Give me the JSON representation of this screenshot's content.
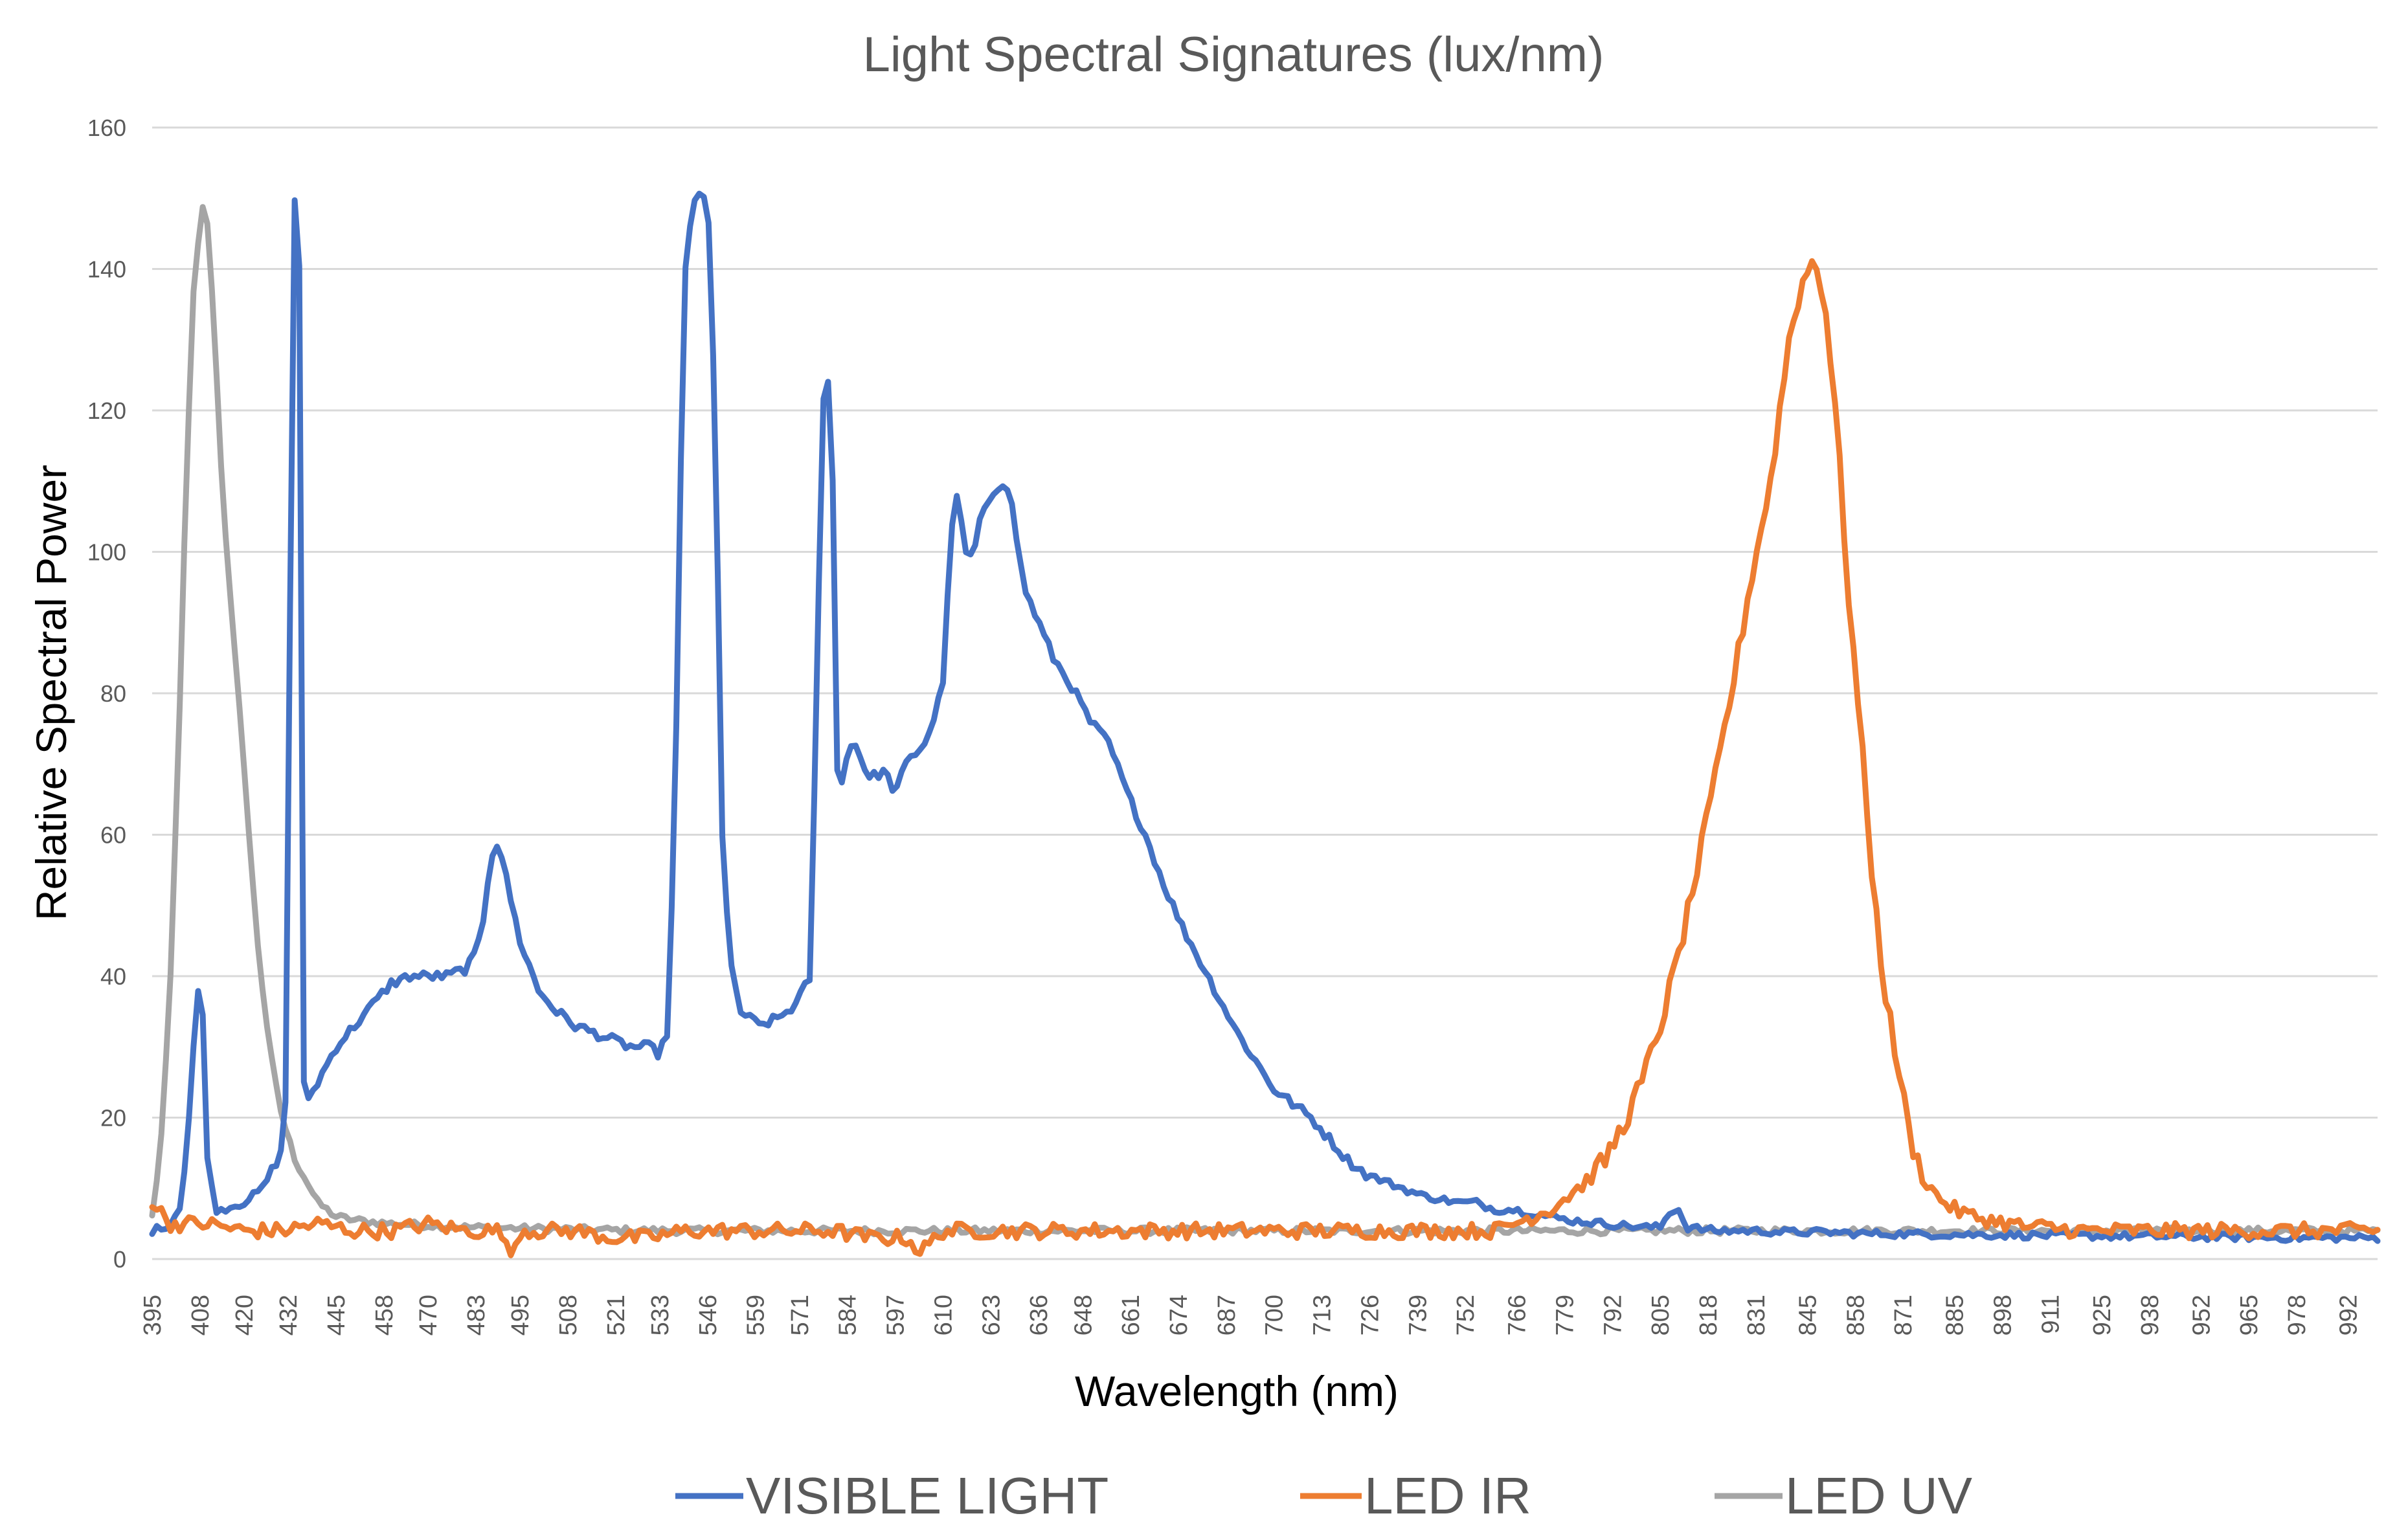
{
  "colors": {
    "visible": "#4472c4",
    "ir": "#ed7d31",
    "uv": "#a5a5a5"
  },
  "chart_data": {
    "type": "line",
    "title": "Light Spectral Signatures (lux/nm)",
    "xlabel": "Wavelength (nm)",
    "ylabel": "Relative Spectral Power",
    "xlim": [
      395,
      1000
    ],
    "ylim": [
      0,
      160
    ],
    "ytick_step": 20,
    "yticks": [
      "0",
      "20",
      "40",
      "60",
      "80",
      "100",
      "120",
      "140",
      "160"
    ],
    "xticks": [
      "395",
      "408",
      "420",
      "432",
      "445",
      "458",
      "470",
      "483",
      "495",
      "508",
      "521",
      "533",
      "546",
      "559",
      "571",
      "584",
      "597",
      "610",
      "623",
      "636",
      "648",
      "661",
      "674",
      "687",
      "700",
      "713",
      "726",
      "739",
      "752",
      "766",
      "779",
      "792",
      "805",
      "818",
      "831",
      "845",
      "858",
      "871",
      "885",
      "898",
      "911",
      "925",
      "938",
      "952",
      "965",
      "978",
      "992"
    ],
    "grid": true,
    "legend_position": "bottom",
    "series": [
      {
        "name": "VISIBLE LIGHT",
        "color": "#4472c4",
        "x": [
          395,
          400,
          403,
          405,
          407,
          408,
          409,
          410,
          412,
          414,
          420,
          425,
          428,
          430,
          431,
          432,
          433,
          434,
          435,
          436,
          437,
          438,
          440,
          445,
          450,
          455,
          460,
          465,
          470,
          475,
          480,
          483,
          485,
          487,
          489,
          490,
          492,
          495,
          500,
          505,
          510,
          515,
          520,
          525,
          530,
          533,
          535,
          537,
          539,
          540,
          542,
          544,
          546,
          548,
          550,
          552,
          555,
          560,
          565,
          570,
          574,
          576,
          578,
          580,
          581,
          582,
          584,
          586,
          590,
          594,
          597,
          600,
          605,
          608,
          610,
          611,
          612,
          614,
          616,
          618,
          620,
          623,
          626,
          628,
          632,
          636,
          640,
          645,
          650,
          655,
          660,
          665,
          670,
          675,
          680,
          685,
          690,
          695,
          700,
          705,
          710,
          715,
          720,
          725,
          730,
          735,
          740,
          745,
          750,
          755,
          760,
          765,
          770,
          780,
          790,
          800,
          805,
          808,
          810,
          812,
          820,
          830,
          840,
          850,
          860,
          880,
          900,
          920,
          940,
          960,
          980,
          1000
        ],
        "y": [
          4,
          5,
          8,
          20,
          36,
          39,
          33,
          15,
          7,
          7,
          8,
          10,
          13,
          15,
          18,
          35,
          150,
          150,
          140,
          25,
          23,
          23,
          25,
          30,
          33,
          36,
          39,
          40,
          40,
          40,
          41,
          43,
          48,
          57,
          59,
          57,
          52,
          45,
          38,
          35,
          33,
          32,
          31,
          30,
          30,
          29,
          32,
          60,
          120,
          140,
          150,
          150,
          150,
          120,
          60,
          42,
          35,
          33,
          34,
          36,
          40,
          90,
          133,
          110,
          70,
          66,
          72,
          73,
          68,
          69,
          66,
          70,
          73,
          77,
          82,
          90,
          103,
          108,
          100,
          99,
          104,
          108,
          110,
          109,
          95,
          90,
          85,
          81,
          76,
          73,
          66,
          60,
          53,
          47,
          42,
          37,
          32,
          28,
          24,
          22,
          20,
          17,
          14,
          12,
          11,
          10,
          9,
          8.5,
          8,
          8,
          7,
          7,
          6.5,
          5.5,
          5,
          4.5,
          4.5,
          7,
          7,
          4.5,
          4,
          4,
          3.8,
          3.8,
          3.6,
          3.5,
          3.4,
          3.3,
          3.2,
          3.1,
          3,
          3
        ]
      },
      {
        "name": "LED IR",
        "color": "#ed7d31",
        "x": [
          395,
          400,
          410,
          420,
          430,
          440,
          450,
          460,
          470,
          480,
          490,
          492,
          495,
          500,
          510,
          520,
          530,
          540,
          550,
          560,
          570,
          580,
          590,
          600,
          604,
          610,
          620,
          630,
          640,
          650,
          660,
          670,
          680,
          690,
          700,
          710,
          720,
          730,
          740,
          750,
          760,
          765,
          770,
          775,
          780,
          785,
          790,
          795,
          800,
          805,
          810,
          815,
          820,
          825,
          830,
          835,
          838,
          840,
          843,
          846,
          848,
          850,
          853,
          856,
          860,
          863,
          866,
          870,
          873,
          876,
          880,
          885,
          890,
          895,
          900,
          905,
          910,
          920,
          930,
          940,
          950,
          960,
          970,
          980,
          990,
          1000
        ],
        "y": [
          8,
          5,
          5,
          4,
          4,
          5,
          4,
          4,
          5,
          4,
          4,
          0,
          4,
          4,
          4,
          3,
          3,
          4,
          4,
          4,
          4,
          4,
          3,
          3,
          1,
          4,
          4,
          4,
          4,
          4,
          4,
          4,
          4,
          4,
          4,
          4,
          4,
          4,
          4,
          4,
          4,
          5,
          6,
          7,
          9,
          11,
          14,
          19,
          25,
          33,
          43,
          55,
          68,
          82,
          97,
          110,
          122,
          130,
          137,
          141,
          140,
          134,
          118,
          95,
          71,
          52,
          38,
          26,
          17,
          12,
          9,
          7,
          6,
          5.5,
          5,
          4.5,
          4.5,
          4,
          4,
          4,
          4,
          4,
          4,
          4,
          4,
          4
        ]
      },
      {
        "name": "LED UV",
        "color": "#a5a5a5",
        "x": [
          395,
          396,
          398,
          400,
          402,
          404,
          406,
          408,
          409,
          410,
          411,
          412,
          414,
          416,
          418,
          420,
          422,
          424,
          426,
          428,
          430,
          432,
          434,
          436,
          438,
          440,
          445,
          450,
          460,
          470,
          480,
          500,
          520,
          540,
          560,
          580,
          600,
          620,
          640,
          660,
          680,
          700,
          720,
          740,
          760,
          780,
          800,
          820,
          840,
          860,
          880,
          900,
          920,
          940,
          960,
          980,
          1000
        ],
        "y": [
          6,
          10,
          20,
          40,
          70,
          105,
          135,
          146,
          150,
          146,
          140,
          130,
          110,
          95,
          82,
          70,
          55,
          43,
          34,
          26,
          21,
          17,
          14,
          12,
          10,
          8,
          6,
          5.5,
          5,
          4.8,
          4.5,
          4.3,
          4.1,
          4,
          4,
          4,
          4,
          4,
          4,
          4,
          4,
          4,
          4,
          4,
          4,
          4,
          4,
          4,
          4,
          4,
          4,
          4,
          4,
          4,
          4,
          4,
          4
        ]
      }
    ]
  }
}
